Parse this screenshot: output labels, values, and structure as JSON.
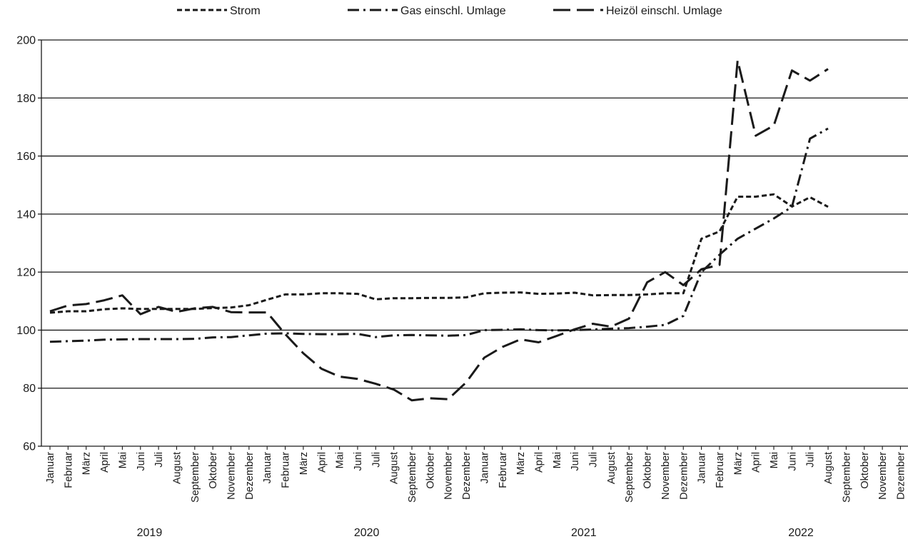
{
  "chart_data": {
    "type": "line",
    "title": "",
    "xlabel": "",
    "ylabel": "",
    "ylim": [
      60,
      200
    ],
    "yticks": [
      60,
      80,
      100,
      120,
      140,
      160,
      180,
      200
    ],
    "grid": "horizontal",
    "legend_position": "top",
    "months": [
      "Januar",
      "Februar",
      "März",
      "April",
      "Mai",
      "Juni",
      "Juli",
      "August",
      "September",
      "Oktober",
      "November",
      "Dezember"
    ],
    "years": [
      "2019",
      "2020",
      "2021",
      "2022"
    ],
    "series": [
      {
        "name": "Strom",
        "dash": "short",
        "values": [
          106.0,
          106.5,
          106.5,
          107.2,
          107.5,
          107.3,
          107.3,
          107.3,
          107.3,
          107.6,
          107.8,
          108.6,
          110.5,
          112.3,
          112.3,
          112.7,
          112.7,
          112.5,
          110.6,
          111.0,
          111.0,
          111.1,
          111.1,
          111.3,
          112.7,
          112.9,
          113.0,
          112.5,
          112.6,
          112.9,
          112.0,
          112.1,
          112.1,
          112.3,
          112.7,
          112.7,
          131.5,
          134.0,
          146.0,
          146.0,
          146.8,
          142.6,
          145.8,
          142.5,
          null,
          null,
          null,
          null
        ]
      },
      {
        "name": "Gas einschl. Umlage",
        "dash": "dashdot",
        "values": [
          96.0,
          96.2,
          96.4,
          96.7,
          96.8,
          96.9,
          96.9,
          96.9,
          97.0,
          97.5,
          97.6,
          98.2,
          98.8,
          98.9,
          98.7,
          98.6,
          98.6,
          98.7,
          97.6,
          98.2,
          98.3,
          98.2,
          98.1,
          98.3,
          100.0,
          100.1,
          100.3,
          100.0,
          99.9,
          100.0,
          100.2,
          100.5,
          100.7,
          101.2,
          101.8,
          104.9,
          120.0,
          126.0,
          131.5,
          135.0,
          138.5,
          142.5,
          166.0,
          169.5,
          null,
          null,
          null,
          null
        ]
      },
      {
        "name": "Heizöl einschl. Umlage",
        "dash": "long",
        "values": [
          106.5,
          108.5,
          109.0,
          110.3,
          112.0,
          105.5,
          108.0,
          106.3,
          107.5,
          108.0,
          106.2,
          106.1,
          106.1,
          98.6,
          92.0,
          86.7,
          84.0,
          83.2,
          81.5,
          79.5,
          75.8,
          76.5,
          76.2,
          82.0,
          90.5,
          94.2,
          96.8,
          95.8,
          98.0,
          100.3,
          102.2,
          101.2,
          104.0,
          116.5,
          120.0,
          115.5,
          121.0,
          122.5,
          193.0,
          167.0,
          170.5,
          189.5,
          186.0,
          190.0,
          null,
          null,
          null,
          null
        ]
      }
    ]
  }
}
